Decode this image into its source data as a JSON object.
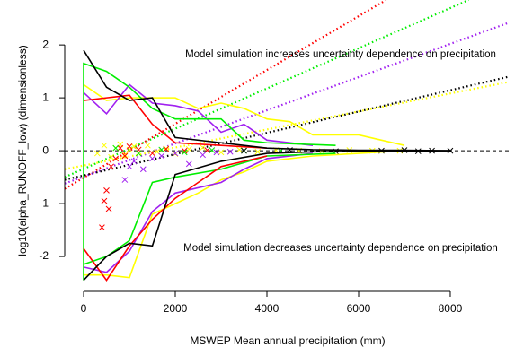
{
  "chart_data": {
    "type": "line",
    "x_label": "MSWEP Mean annual precipitation (mm)",
    "y_label": "log10(alpha_RUNOFF_low) (dimensionless)",
    "annotations": [
      "Model simulation increases uncertainty dependence on precipitation",
      "Model simulation decreases uncertainty dependence on precipitation"
    ],
    "xlim": [
      -412,
      9275
    ],
    "ylim": [
      -2.66,
      2.85
    ],
    "xticks": [
      0,
      2000,
      4000,
      6000,
      8000
    ],
    "yticks": [
      -2,
      -1,
      0,
      1,
      2
    ],
    "hline": 0,
    "series": [
      {
        "type": "dotted",
        "color": "#00ee00",
        "x": [
          -412,
          8400
        ],
        "values": [
          -0.5,
          2.85
        ]
      },
      {
        "type": "dotted",
        "color": "#ff0000",
        "x": [
          -412,
          6600
        ],
        "values": [
          -0.72,
          2.85
        ]
      },
      {
        "type": "dotted",
        "color": "#a020f0",
        "x": [
          -412,
          9275
        ],
        "values": [
          -0.62,
          2.42
        ]
      },
      {
        "type": "dotted",
        "color": "#000000",
        "x": [
          -412,
          9275
        ],
        "values": [
          -0.55,
          1.4
        ]
      },
      {
        "type": "dotted",
        "color": "#ffff00",
        "x": [
          -412,
          9275
        ],
        "values": [
          -0.35,
          1.3
        ]
      },
      {
        "type": "scatter",
        "color": "#ffff00",
        "x": [
          300,
          450,
          600,
          700,
          800,
          900,
          1000,
          1100,
          1200,
          1400,
          1600,
          1800,
          2000,
          2300,
          2600,
          3000,
          3400,
          3800,
          4200,
          4700,
          5200,
          5800,
          6300,
          6900
        ],
        "values": [
          -0.05,
          0.1,
          -0.12,
          0.05,
          0.12,
          -0.08,
          0.02,
          0.08,
          -0.05,
          0.1,
          -0.02,
          0.04,
          -0.06,
          0.03,
          0.06,
          -0.03,
          0.02,
          -0.02,
          0.01,
          0.0,
          -0.01,
          0.01,
          0.0,
          0.0
        ]
      },
      {
        "type": "scatter",
        "color": "#ff0000",
        "x": [
          400,
          450,
          500,
          550,
          600,
          700,
          800,
          900,
          1000,
          1200,
          1500,
          1800,
          2200,
          2700
        ],
        "values": [
          -1.45,
          -0.95,
          -0.75,
          -1.1,
          -0.3,
          -0.15,
          0.05,
          -0.1,
          0.08,
          0.02,
          -0.05,
          0.03,
          0.0,
          0.01
        ]
      },
      {
        "type": "scatter",
        "color": "#a020f0",
        "x": [
          900,
          1000,
          1100,
          1300,
          1500,
          1700,
          2000,
          2300,
          2600,
          2900,
          3200
        ],
        "values": [
          -0.55,
          -0.3,
          -0.2,
          -0.35,
          -0.15,
          -0.1,
          -0.05,
          -0.25,
          -0.08,
          -0.03,
          -0.02
        ]
      },
      {
        "type": "scatter",
        "color": "#00ee00",
        "x": [
          700,
          1200,
          1700,
          2200,
          2800,
          3500,
          4300
        ],
        "values": [
          0.05,
          -0.05,
          0.02,
          -0.03,
          0.01,
          0.0,
          0.0
        ]
      },
      {
        "type": "scatter",
        "color": "#000000",
        "x": [
          3500,
          4500,
          5500,
          6500,
          7000,
          7300,
          7600,
          8000
        ],
        "values": [
          0.0,
          0.01,
          -0.01,
          0.0,
          0.01,
          -0.01,
          0.0,
          0.0
        ]
      },
      {
        "type": "line",
        "color": "#ffff00",
        "x": [
          0,
          500,
          1000,
          1500,
          2000,
          2500,
          3000,
          3500,
          4000,
          4500,
          5000,
          6000,
          7000
        ],
        "values": [
          1.25,
          0.95,
          1.0,
          1.0,
          1.0,
          0.8,
          0.9,
          0.8,
          0.6,
          0.55,
          0.3,
          0.3,
          0.1
        ]
      },
      {
        "type": "line",
        "color": "#ffff00",
        "x": [
          0,
          500,
          1000,
          1500,
          2000,
          2500,
          3000,
          3500,
          4000,
          5000,
          6000,
          7000
        ],
        "values": [
          -2.35,
          -2.35,
          -2.4,
          -1.2,
          -1.0,
          -0.8,
          -0.55,
          -0.4,
          -0.2,
          -0.1,
          -0.05,
          0.0
        ]
      },
      {
        "type": "line",
        "color": "#a020f0",
        "x": [
          0,
          500,
          1000,
          1500,
          2000,
          2500,
          3000,
          3500,
          4000,
          5000
        ],
        "values": [
          1.1,
          0.7,
          1.25,
          0.9,
          0.85,
          0.75,
          0.35,
          0.5,
          0.2,
          0.1
        ]
      },
      {
        "type": "line",
        "color": "#a020f0",
        "x": [
          0,
          500,
          1000,
          1500,
          2000,
          3000,
          3500,
          4000,
          5000
        ],
        "values": [
          -2.2,
          -2.3,
          -1.9,
          -1.15,
          -0.8,
          -0.6,
          -0.35,
          -0.15,
          -0.05
        ]
      },
      {
        "type": "line",
        "color": "#00ee00",
        "x": [
          0,
          0,
          500,
          1000,
          1500,
          2000,
          3000,
          3500,
          4000,
          5500
        ],
        "values": [
          -2.45,
          1.65,
          1.5,
          1.2,
          0.8,
          0.6,
          0.6,
          0.2,
          0.15,
          0.1
        ]
      },
      {
        "type": "line",
        "color": "#00ee00",
        "x": [
          0,
          500,
          1000,
          1500,
          2000,
          3000,
          4000,
          5500
        ],
        "values": [
          -2.15,
          -2.0,
          -1.7,
          -0.6,
          -0.5,
          -0.35,
          -0.1,
          -0.05
        ]
      },
      {
        "type": "line",
        "color": "#ff0000",
        "x": [
          0,
          500,
          1000,
          1500,
          2000,
          3000,
          4000
        ],
        "values": [
          0.95,
          1.0,
          1.05,
          0.5,
          0.15,
          0.1,
          0.05
        ]
      },
      {
        "type": "line",
        "color": "#ff0000",
        "x": [
          0,
          500,
          1000,
          1500,
          2000,
          2500,
          3000,
          4000
        ],
        "values": [
          -1.85,
          -2.45,
          -1.8,
          -1.3,
          -0.9,
          -0.6,
          -0.3,
          -0.1
        ]
      },
      {
        "type": "line",
        "color": "#000000",
        "x": [
          0,
          500,
          1000,
          1500,
          2000,
          3000,
          4000,
          5000,
          6000,
          7000,
          8000
        ],
        "values": [
          1.9,
          1.2,
          0.95,
          1.0,
          0.25,
          0.15,
          0.05,
          0.02,
          0.01,
          0.01,
          0.0
        ]
      },
      {
        "type": "line",
        "color": "#000000",
        "x": [
          0,
          500,
          1000,
          1500,
          2000,
          3000,
          4000,
          5000,
          6000,
          8000
        ],
        "values": [
          -2.45,
          -2.0,
          -1.75,
          -1.8,
          -0.45,
          -0.2,
          -0.05,
          -0.02,
          -0.01,
          0.0
        ]
      }
    ]
  }
}
